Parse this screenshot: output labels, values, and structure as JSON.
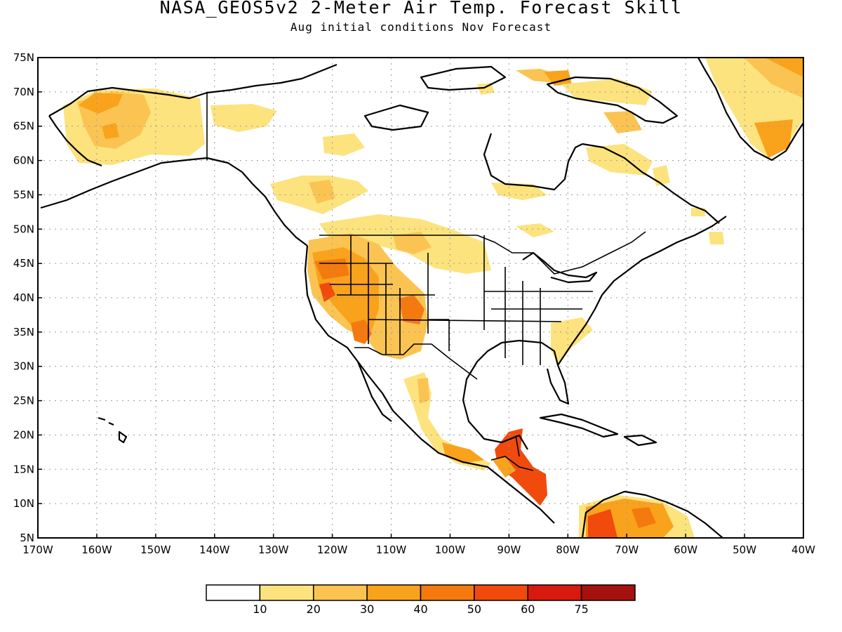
{
  "header": {
    "title": "NASA_GEOS5v2 2-Meter Air Temp. Forecast Skill",
    "subtitle": "Aug initial conditions  Nov Forecast"
  },
  "map": {
    "region": "North America",
    "lat_ticks": [
      "75N",
      "70N",
      "65N",
      "60N",
      "55N",
      "50N",
      "45N",
      "40N",
      "35N",
      "30N",
      "25N",
      "20N",
      "15N",
      "10N",
      "5N"
    ],
    "lon_ticks": [
      "170W",
      "160W",
      "150W",
      "140W",
      "130W",
      "120W",
      "110W",
      "100W",
      "90W",
      "80W",
      "70W",
      "60W",
      "50W",
      "40W"
    ],
    "gridlines": "dotted",
    "layers": [
      "coastlines",
      "country borders",
      "US state borders",
      "shaded skill field"
    ]
  },
  "colorbar": {
    "levels": [
      "10",
      "20",
      "30",
      "40",
      "50",
      "60",
      "75"
    ],
    "colors": [
      "#ffffff",
      "#fce37e",
      "#fbc452",
      "#f9a21c",
      "#f47a0f",
      "#f04a0c",
      "#d81a0e",
      "#a5110e"
    ]
  },
  "colors": {
    "c1": "#fce37e",
    "c2": "#fbc452",
    "c3": "#f9a21c",
    "c4": "#f47a0f",
    "c5": "#f04a0c",
    "c6": "#d81a0e",
    "c7": "#a5110e"
  }
}
